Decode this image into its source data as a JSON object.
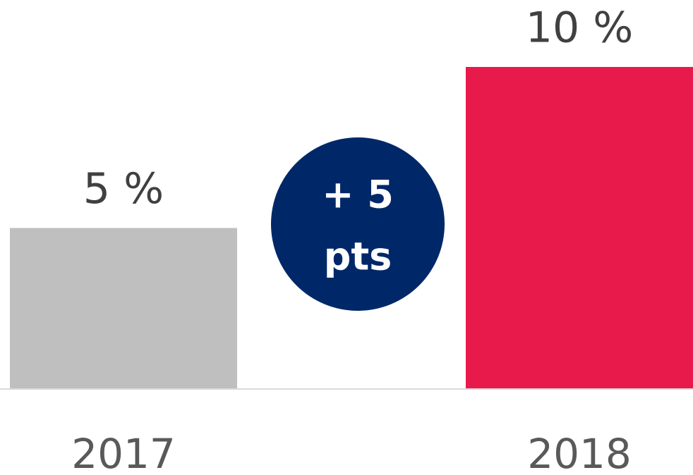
{
  "chart_data": {
    "type": "bar",
    "categories": [
      "2017",
      "2018"
    ],
    "values": [
      5,
      10
    ],
    "value_labels": [
      "5 %",
      "10 %"
    ],
    "colors": [
      "#bfbfbf",
      "#e8194b"
    ],
    "ylim": [
      0,
      10
    ],
    "annotation": {
      "lines": [
        "+ 5",
        "pts"
      ],
      "color": "#002868"
    }
  }
}
